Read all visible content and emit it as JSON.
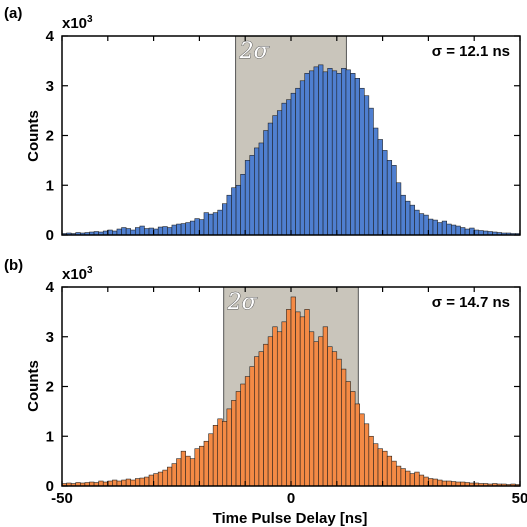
{
  "chart_data": [
    {
      "type": "bar",
      "panel_label": "(a)",
      "multiplier_label": "x10",
      "multiplier_exponent": "3",
      "ylabel": "Counts",
      "xlabel": "",
      "sigma_label": "σ = 12.1 ns",
      "band_label": "2σ",
      "band_range_ns": [
        -12.1,
        12.1
      ],
      "bar_color": "#4f7fd0",
      "band_color": "#c9c5bb",
      "xlim": [
        -50,
        50
      ],
      "ylim": [
        0,
        4
      ],
      "xticks": [],
      "yticks": [
        "0",
        "1",
        "2",
        "3",
        "4"
      ],
      "bin_width_ns": 1,
      "bin_start_ns": -50,
      "values": [
        0.03,
        0.04,
        0.03,
        0.05,
        0.04,
        0.05,
        0.06,
        0.07,
        0.06,
        0.08,
        0.1,
        0.08,
        0.12,
        0.15,
        0.13,
        0.1,
        0.15,
        0.18,
        0.13,
        0.14,
        0.12,
        0.16,
        0.17,
        0.15,
        0.2,
        0.22,
        0.23,
        0.25,
        0.28,
        0.33,
        0.31,
        0.45,
        0.42,
        0.45,
        0.5,
        0.63,
        0.8,
        0.95,
        1.0,
        1.22,
        1.5,
        1.6,
        1.75,
        1.85,
        2.1,
        2.25,
        2.4,
        2.5,
        2.65,
        2.72,
        2.85,
        2.95,
        3.1,
        3.25,
        3.3,
        3.38,
        3.42,
        3.28,
        3.35,
        3.3,
        3.25,
        3.35,
        3.32,
        3.25,
        3.15,
        2.95,
        2.8,
        2.55,
        2.15,
        1.92,
        1.7,
        1.5,
        1.4,
        1.05,
        0.8,
        0.68,
        0.6,
        0.5,
        0.43,
        0.4,
        0.32,
        0.3,
        0.25,
        0.28,
        0.22,
        0.2,
        0.18,
        0.15,
        0.12,
        0.14,
        0.1,
        0.09,
        0.08,
        0.07,
        0.06,
        0.05,
        0.04,
        0.04,
        0.03,
        0.03
      ]
    },
    {
      "type": "bar",
      "panel_label": "(b)",
      "multiplier_label": "x10",
      "multiplier_exponent": "3",
      "ylabel": "Counts",
      "xlabel": "Time Pulse Delay [ns]",
      "sigma_label": "σ = 14.7 ns",
      "band_label": "2σ",
      "band_range_ns": [
        -14.7,
        14.7
      ],
      "bar_color": "#f48a45",
      "band_color": "#c9c5bb",
      "xlim": [
        -50,
        50
      ],
      "ylim": [
        0,
        4
      ],
      "xticks": [
        "-50",
        "0",
        "50"
      ],
      "yticks": [
        "0",
        "1",
        "2",
        "3",
        "4"
      ],
      "bin_width_ns": 1,
      "bin_start_ns": -50,
      "values": [
        0.05,
        0.06,
        0.05,
        0.07,
        0.06,
        0.07,
        0.08,
        0.07,
        0.1,
        0.08,
        0.1,
        0.12,
        0.1,
        0.12,
        0.14,
        0.12,
        0.15,
        0.16,
        0.18,
        0.22,
        0.25,
        0.28,
        0.32,
        0.38,
        0.45,
        0.55,
        0.7,
        0.6,
        0.55,
        0.75,
        0.8,
        0.9,
        1.05,
        1.22,
        1.35,
        1.3,
        1.55,
        1.72,
        1.9,
        2.05,
        2.2,
        2.4,
        2.6,
        2.7,
        2.85,
        3.0,
        3.2,
        3.1,
        3.3,
        3.55,
        3.8,
        3.5,
        3.4,
        3.55,
        3.1,
        2.9,
        3.0,
        3.2,
        2.8,
        2.7,
        2.55,
        2.35,
        2.1,
        1.9,
        1.65,
        1.45,
        1.25,
        1.0,
        0.85,
        0.75,
        0.7,
        0.6,
        0.5,
        0.4,
        0.35,
        0.3,
        0.25,
        0.28,
        0.22,
        0.18,
        0.15,
        0.14,
        0.12,
        0.1,
        0.1,
        0.09,
        0.08,
        0.08,
        0.07,
        0.06,
        0.06,
        0.05,
        0.05,
        0.04,
        0.05,
        0.04,
        0.04,
        0.03,
        0.04,
        0.03
      ]
    }
  ]
}
